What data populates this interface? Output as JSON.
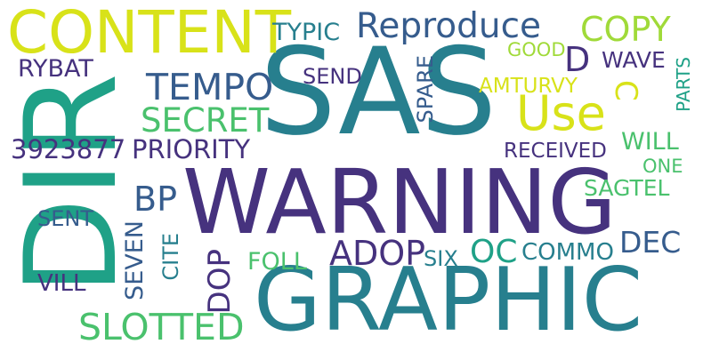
{
  "words": {
    "sas": "SAS",
    "warning": "WARNING",
    "graphic": "GRAPHIC",
    "dir": "DIR",
    "content": "CONTENT",
    "use": "Use",
    "reproduce": "Reproduce",
    "copy": "COPY",
    "typic": "TYPIC",
    "tempo": "TEMPO",
    "secret": "SECRET",
    "number": "3923877",
    "priority": "PRIORITY",
    "rybat": "RYBAT",
    "send": "SEND",
    "spare": "SPARE",
    "good": "GOOD",
    "d": "D",
    "wave": "WAVE",
    "amturvy": "AMTURVY",
    "c": "C",
    "parts": "PARTS",
    "received": "RECEIVED",
    "will": "WILL",
    "one": "ONE",
    "sagtel": "SAGTEL",
    "bp": "BP",
    "sent": "SENT",
    "seven": "SEVEN",
    "cite": "CITE",
    "dop": "DOP",
    "adop": "ADOP",
    "oc": "OC",
    "foll": "FOLL",
    "six": "SIX",
    "commo": "COMMO",
    "dec": "DEC",
    "vill": "VILL",
    "slotted": "SLOTTED"
  },
  "colors": {
    "dark_purple": "#46327e",
    "slate_blue": "#365c8d",
    "teal_blue": "#277f8e",
    "teal": "#1fa187",
    "green": "#4ac16d",
    "yellow_green": "#a0da39",
    "yellow": "#d8e219",
    "background": "#ffffff"
  }
}
